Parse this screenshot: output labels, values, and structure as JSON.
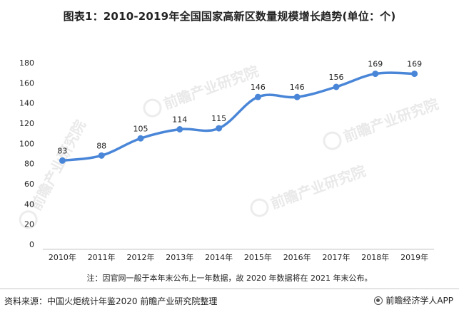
{
  "header": {
    "title": "图表1：2010-2019年全国国家高新区数量规模增长趋势(单位：个)"
  },
  "footer": {
    "note": "注：因官网一般于本年末公布上一年数据，故 2020 年数据将在 2021 年末公布。",
    "source": "资料来源：中国火炬统计年鉴2020 前瞻产业研究院整理",
    "brand": "前瞻经济学人APP"
  },
  "watermark": {
    "text": "前瞻产业研究院"
  },
  "chart_data": {
    "type": "line",
    "title": "图表1：2010-2019年全国国家高新区数量规模增长趋势(单位：个)",
    "categories": [
      "2010年",
      "2011年",
      "2012年",
      "2013年",
      "2014年",
      "2015年",
      "2016年",
      "2017年",
      "2018年",
      "2019年"
    ],
    "series": [
      {
        "values": [
          83,
          88,
          105,
          114,
          115,
          146,
          146,
          156,
          169,
          169
        ],
        "color": "#4a86d8"
      }
    ],
    "ylim": [
      0,
      180
    ],
    "yticks": [
      0,
      20,
      40,
      60,
      80,
      100,
      120,
      140,
      160,
      180
    ],
    "xlabel": "",
    "ylabel": "",
    "grid": false,
    "legend": "none",
    "smooth": true,
    "data_labels": true
  }
}
